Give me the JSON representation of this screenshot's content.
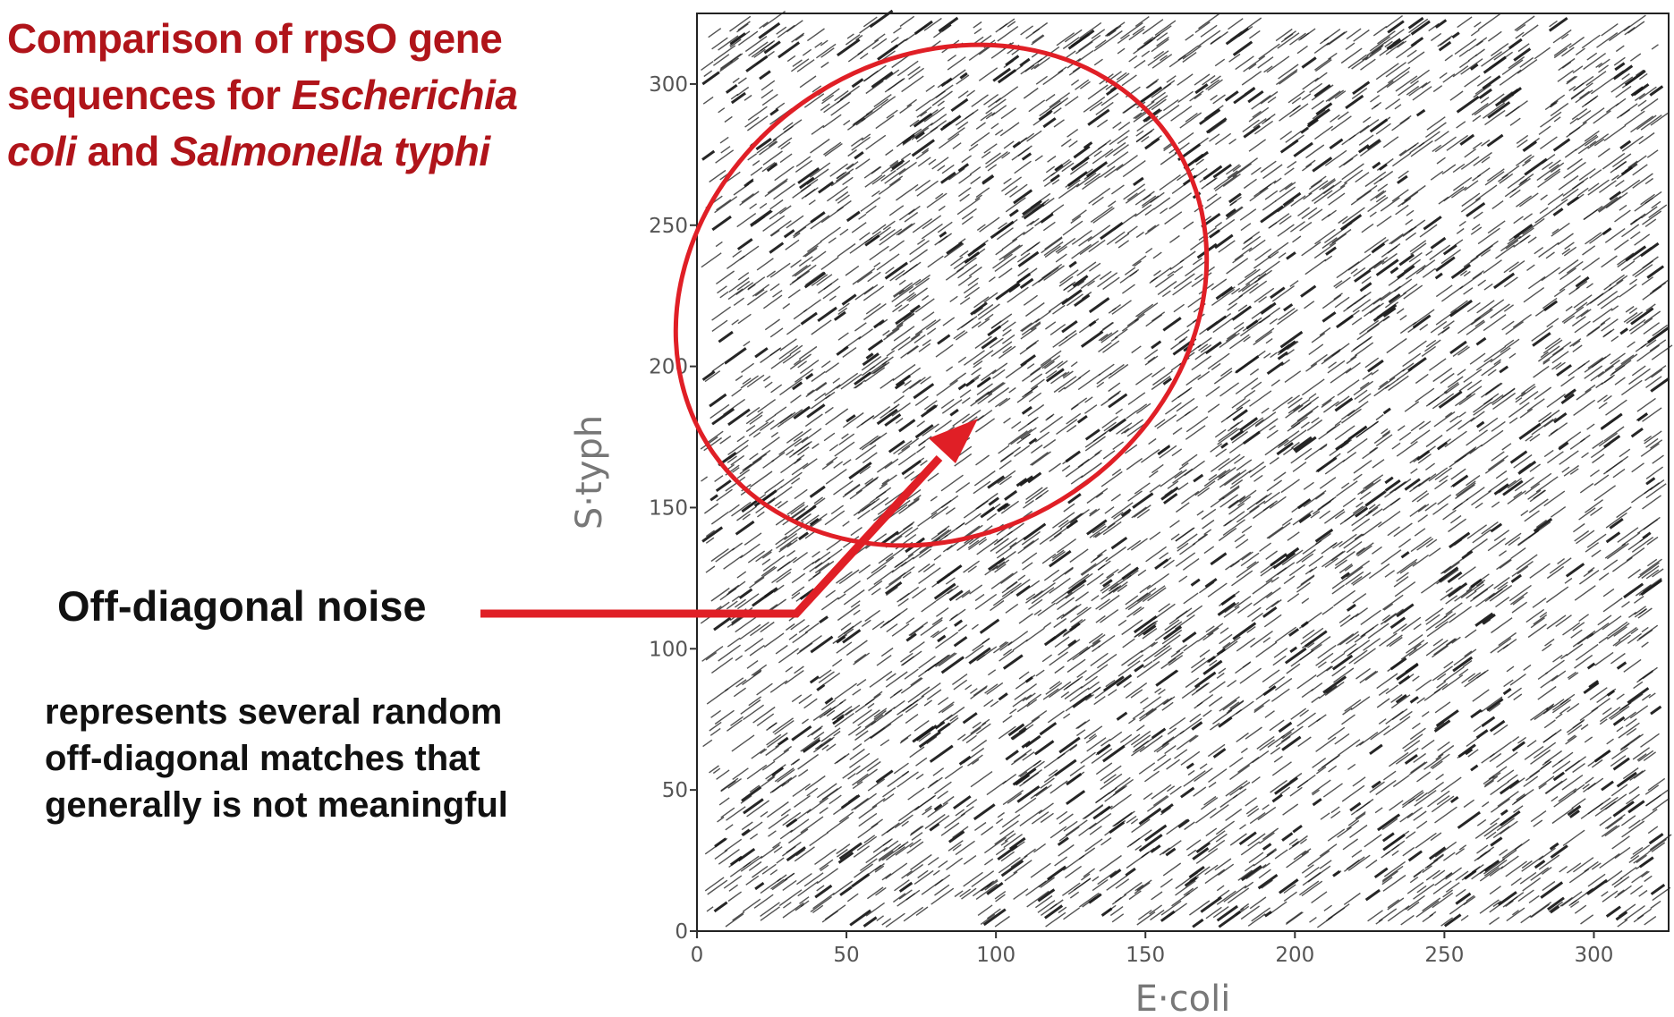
{
  "title": {
    "line1": "Comparison of rpsO gene",
    "line2_plain": "sequences for ",
    "line2_italic": "Escherichia",
    "line3_italic_a": "coli",
    "line3_plain": " and ",
    "line3_italic_b": "Salmonella typhi"
  },
  "annotation": {
    "label": "Off-diagonal noise",
    "description_lines": [
      "represents several random",
      "off-diagonal matches that",
      "generally is not meaningful"
    ],
    "highlight_color": "#e01f26"
  },
  "colors": {
    "title": "#b0141a",
    "dots": "#1a1a1a",
    "highlight": "#e01f26"
  },
  "chart_data": {
    "type": "scatter",
    "subtype": "dot-plot",
    "xlabel": "E·coli",
    "ylabel": "S·typh",
    "xlim": [
      0,
      325
    ],
    "ylim": [
      0,
      325
    ],
    "xticks": [
      0,
      50,
      100,
      150,
      200,
      250,
      300
    ],
    "yticks": [
      0,
      50,
      100,
      150,
      200,
      250,
      300
    ],
    "grid": false,
    "dense_short_diagonal_match_segments": true,
    "highlight_ellipse": {
      "center": [
        145,
        195
      ],
      "note": "encircles off-diagonal match region"
    },
    "arrow": {
      "from_label": "Off-diagonal noise",
      "points_to": [
        95,
        180
      ]
    }
  }
}
